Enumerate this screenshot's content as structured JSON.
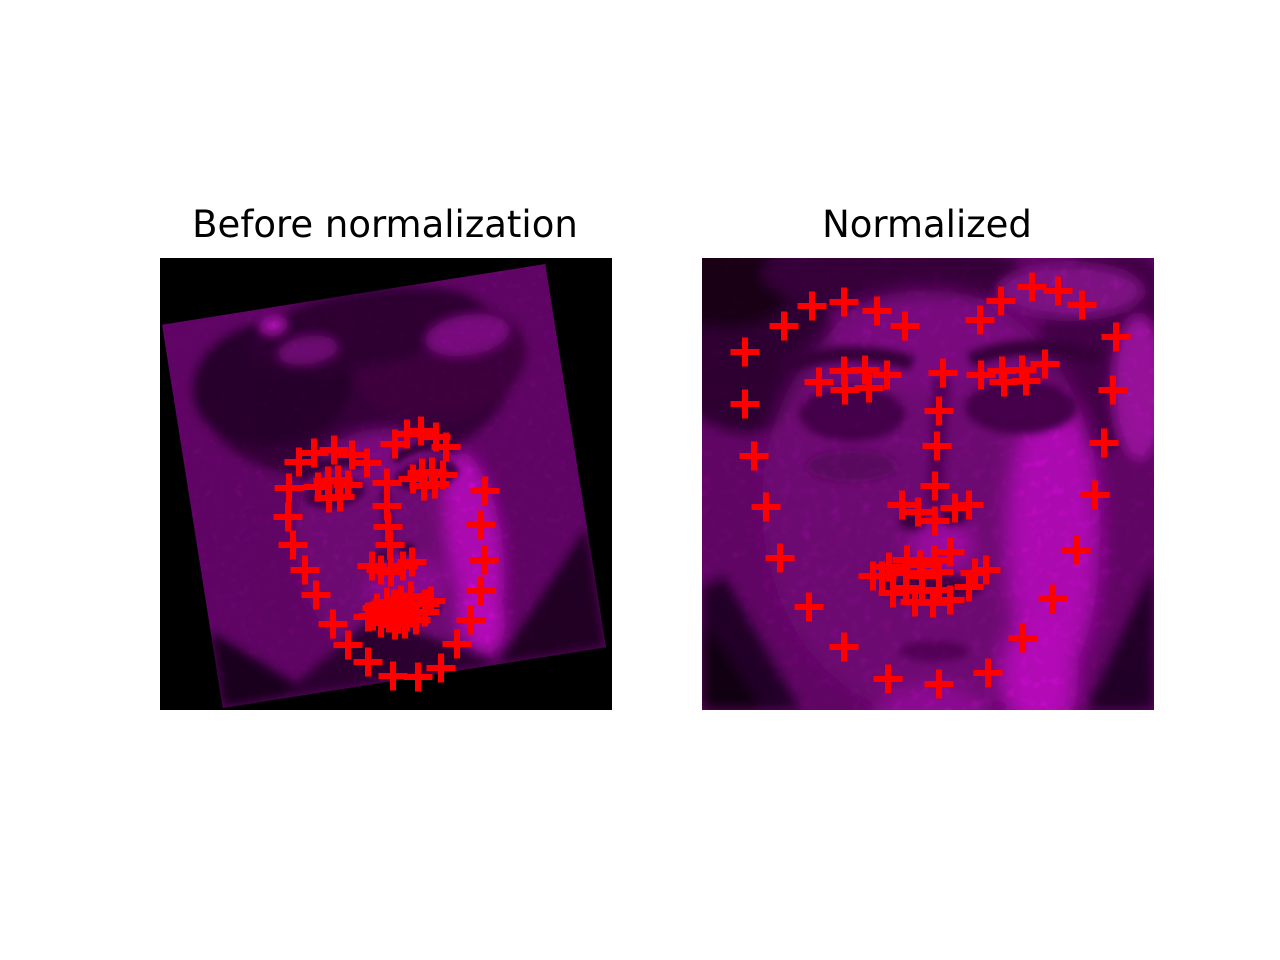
{
  "figure": {
    "background_color": "#ffffff",
    "title_color": "#000000",
    "marker": {
      "shape": "plus",
      "color": "#ff0000",
      "size": 29,
      "stroke_width": 6
    },
    "palette": {
      "image_background_purple": "#7a0680",
      "face_mid": "#8d0893",
      "face_highlight": "#e00ae6",
      "hair_dark": "#3a0240",
      "shadow_dark": "#2a022e",
      "outside_black": "#000000"
    }
  },
  "chart_data": [
    {
      "type": "scatter",
      "title": "Before normalization",
      "marker": "+",
      "units": "panel_px",
      "panel_size": [
        452,
        452
      ],
      "image": "rotated magenta-tinted face photo on black background, rotated about -9 degrees",
      "points": [
        [
          129,
          230
        ],
        [
          128,
          259
        ],
        [
          133,
          287
        ],
        [
          145,
          312
        ],
        [
          156,
          337
        ],
        [
          173,
          366
        ],
        [
          188,
          387
        ],
        [
          208,
          404
        ],
        [
          233,
          418
        ],
        [
          258,
          419
        ],
        [
          281,
          410
        ],
        [
          297,
          386
        ],
        [
          311,
          362
        ],
        [
          321,
          333
        ],
        [
          324,
          302
        ],
        [
          321,
          267
        ],
        [
          325,
          233
        ],
        [
          139,
          204
        ],
        [
          154,
          195
        ],
        [
          174,
          192
        ],
        [
          192,
          197
        ],
        [
          207,
          205
        ],
        [
          235,
          186
        ],
        [
          247,
          176
        ],
        [
          261,
          173
        ],
        [
          276,
          179
        ],
        [
          286,
          189
        ],
        [
          227,
          225
        ],
        [
          227,
          248
        ],
        [
          228,
          269
        ],
        [
          230,
          287
        ],
        [
          212,
          308
        ],
        [
          221,
          312
        ],
        [
          231,
          314
        ],
        [
          243,
          308
        ],
        [
          252,
          304
        ],
        [
          158,
          229
        ],
        [
          168,
          223
        ],
        [
          178,
          222
        ],
        [
          188,
          227
        ],
        [
          180,
          239
        ],
        [
          169,
          240
        ],
        [
          253,
          221
        ],
        [
          262,
          215
        ],
        [
          272,
          214
        ],
        [
          283,
          217
        ],
        [
          275,
          226
        ],
        [
          264,
          228
        ],
        [
          208,
          359
        ],
        [
          217,
          350
        ],
        [
          227,
          344
        ],
        [
          234,
          346
        ],
        [
          241,
          342
        ],
        [
          251,
          338
        ],
        [
          271,
          343
        ],
        [
          265,
          354
        ],
        [
          256,
          362
        ],
        [
          245,
          366
        ],
        [
          235,
          367
        ],
        [
          221,
          365
        ],
        [
          213,
          358
        ],
        [
          228,
          352
        ],
        [
          237,
          352
        ],
        [
          245,
          349
        ],
        [
          265,
          346
        ],
        [
          247,
          359
        ],
        [
          238,
          361
        ],
        [
          229,
          360
        ]
      ]
    },
    {
      "type": "scatter",
      "title": "Normalized",
      "marker": "+",
      "units": "panel_px",
      "panel_size": [
        452,
        452
      ],
      "image": "aligned magenta-tinted face photo filling the frame",
      "points": [
        [
          43,
          94
        ],
        [
          43,
          146
        ],
        [
          52,
          198
        ],
        [
          64,
          249
        ],
        [
          78,
          300
        ],
        [
          107,
          349
        ],
        [
          142,
          389
        ],
        [
          186,
          421
        ],
        [
          237,
          426
        ],
        [
          286,
          415
        ],
        [
          321,
          380
        ],
        [
          351,
          341
        ],
        [
          374,
          292
        ],
        [
          393,
          237
        ],
        [
          402,
          185
        ],
        [
          411,
          132
        ],
        [
          414,
          79
        ],
        [
          82,
          68
        ],
        [
          110,
          48
        ],
        [
          142,
          44
        ],
        [
          175,
          53
        ],
        [
          203,
          68
        ],
        [
          278,
          62
        ],
        [
          299,
          43
        ],
        [
          330,
          29
        ],
        [
          356,
          33
        ],
        [
          380,
          47
        ],
        [
          241,
          115
        ],
        [
          237,
          153
        ],
        [
          235,
          188
        ],
        [
          233,
          228
        ],
        [
          200,
          247
        ],
        [
          216,
          254
        ],
        [
          233,
          263
        ],
        [
          253,
          250
        ],
        [
          267,
          247
        ],
        [
          117,
          124
        ],
        [
          142,
          113
        ],
        [
          163,
          112
        ],
        [
          185,
          117
        ],
        [
          167,
          130
        ],
        [
          143,
          132
        ],
        [
          279,
          117
        ],
        [
          300,
          113
        ],
        [
          320,
          112
        ],
        [
          343,
          106
        ],
        [
          324,
          123
        ],
        [
          302,
          124
        ],
        [
          171,
          318
        ],
        [
          187,
          309
        ],
        [
          205,
          302
        ],
        [
          218,
          307
        ],
        [
          232,
          302
        ],
        [
          248,
          294
        ],
        [
          284,
          312
        ],
        [
          267,
          329
        ],
        [
          248,
          342
        ],
        [
          231,
          345
        ],
        [
          213,
          344
        ],
        [
          191,
          335
        ],
        [
          180,
          318
        ],
        [
          204,
          315
        ],
        [
          220,
          318
        ],
        [
          237,
          314
        ],
        [
          273,
          315
        ],
        [
          237,
          332
        ],
        [
          220,
          333
        ],
        [
          204,
          330
        ]
      ]
    }
  ]
}
